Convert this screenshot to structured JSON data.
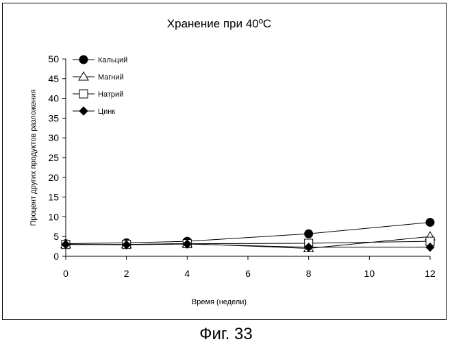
{
  "chart_data": {
    "type": "line",
    "title": "Хранение при 40ºC",
    "xlabel": "Время (недели)",
    "ylabel": "Процент других продуктов разложения",
    "x": [
      0,
      2,
      4,
      8,
      12
    ],
    "xlim": [
      0,
      12
    ],
    "ylim": [
      0,
      50
    ],
    "x_ticks": [
      0,
      2,
      4,
      6,
      8,
      10,
      12
    ],
    "y_ticks": [
      0,
      5,
      10,
      15,
      20,
      25,
      30,
      35,
      40,
      45,
      50
    ],
    "grid": false,
    "legend_position": "top-left",
    "series": [
      {
        "name": "Кальций",
        "marker": "circle-filled",
        "values": [
          3.2,
          3.4,
          3.8,
          5.7,
          8.6
        ]
      },
      {
        "name": "Магний",
        "marker": "triangle-open",
        "values": [
          3.0,
          3.0,
          3.2,
          2.0,
          5.0
        ]
      },
      {
        "name": "Натрий",
        "marker": "square-open",
        "values": [
          3.0,
          3.0,
          3.2,
          3.3,
          3.8
        ]
      },
      {
        "name": "Цинк",
        "marker": "diamond-filled",
        "values": [
          3.0,
          2.9,
          3.1,
          2.3,
          2.3
        ]
      }
    ]
  },
  "caption": "Фиг. 33"
}
